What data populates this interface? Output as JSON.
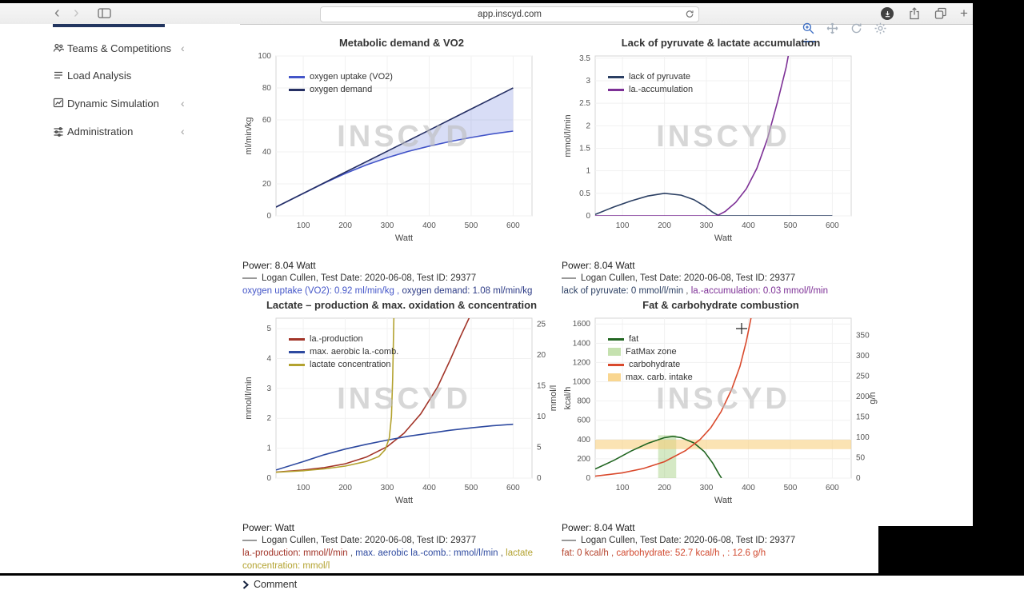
{
  "browser": {
    "url": "app.inscyd.com",
    "back": "‹",
    "forward": "›",
    "new_tab": "+",
    "icons": [
      "back-icon",
      "forward-icon",
      "sidebar-toggle-icon",
      "reload-icon",
      "downloads-icon",
      "share-icon",
      "tabs-overview-icon",
      "new-tab-icon"
    ]
  },
  "sidebar": {
    "items": [
      {
        "label": "Teams & Competitions",
        "chevron": "‹"
      },
      {
        "label": "Load Analysis",
        "chevron": ""
      },
      {
        "label": "Dynamic Simulation",
        "chevron": "‹"
      },
      {
        "label": "Administration",
        "chevron": "‹"
      }
    ]
  },
  "modebar": {
    "icons": [
      "zoom-icon",
      "pan-icon",
      "reset-axes-icon",
      "settings-icon"
    ]
  },
  "comment": {
    "label": "Comment"
  },
  "chart_data": [
    {
      "type": "line",
      "title": "Metabolic demand & VO2",
      "xlabel": "Watt",
      "ylabel": "ml/min/kg",
      "y2label": null,
      "xlim": [
        35,
        645
      ],
      "xticks": [
        100,
        200,
        300,
        400,
        500,
        600
      ],
      "ylim": [
        0,
        100
      ],
      "yticks": [
        0,
        20,
        40,
        60,
        80,
        100
      ],
      "watermark": "INSCYD",
      "legend": [
        {
          "label": "oxygen uptake (VO2)",
          "color": "#4355c8",
          "swatch": "line"
        },
        {
          "label": "oxygen demand",
          "color": "#252f63",
          "swatch": "line"
        }
      ],
      "series": [
        {
          "name": "oxygen uptake (VO2)",
          "color": "#4355c8",
          "axis": "left",
          "x": [
            35,
            100,
            150,
            200,
            250,
            300,
            350,
            400,
            450,
            500,
            550,
            600
          ],
          "y": [
            5.5,
            14,
            20.5,
            26.5,
            31.8,
            36.4,
            40.3,
            43.6,
            46.5,
            49,
            51.2,
            53
          ]
        },
        {
          "name": "oxygen demand",
          "color": "#252f63",
          "axis": "left",
          "x": [
            35,
            100,
            200,
            300,
            400,
            500,
            600
          ],
          "y": [
            5.5,
            14.1,
            27.3,
            40.4,
            53.6,
            66.8,
            80
          ]
        }
      ],
      "fill_between": {
        "series": [
          0,
          1
        ],
        "color": "rgba(100,120,220,0.25)"
      },
      "bands": [],
      "footer": {
        "power": "Power: 8.04 Watt",
        "athlete": "Logan Cullen, Test Date: 2020-06-08, Test ID: 29377",
        "values": [
          {
            "text": "oxygen uptake (VO2): 0.92 ml/min/kg",
            "color": "#4355c8"
          },
          {
            "text": " , ",
            "color": "#4355c8"
          },
          {
            "text": "oxygen demand: 1.08 ml/min/kg",
            "color": "#2c3a85"
          }
        ]
      }
    },
    {
      "type": "line",
      "title": "Lack of pyruvate & lactate accumulation",
      "xlabel": "Watt",
      "ylabel": "mmol/l/min",
      "y2label": null,
      "xlim": [
        35,
        645
      ],
      "xticks": [
        100,
        200,
        300,
        400,
        500,
        600
      ],
      "ylim": [
        0,
        3.55
      ],
      "yticks": [
        0,
        0.5,
        1,
        1.5,
        2,
        2.5,
        3,
        3.5
      ],
      "watermark": "INSCYD",
      "legend": [
        {
          "label": "lack of pyruvate",
          "color": "#2b3f63",
          "swatch": "line"
        },
        {
          "label": "la.-accumulation",
          "color": "#7d3096",
          "swatch": "line"
        }
      ],
      "series": [
        {
          "name": "lack of pyruvate",
          "color": "#2b3f63",
          "axis": "left",
          "x": [
            35,
            80,
            120,
            160,
            200,
            240,
            270,
            295,
            315,
            330,
            400,
            600
          ],
          "y": [
            0.03,
            0.2,
            0.33,
            0.44,
            0.5,
            0.46,
            0.36,
            0.22,
            0.08,
            0,
            0,
            0
          ]
        },
        {
          "name": "la.-accumulation",
          "color": "#7d3096",
          "axis": "left",
          "x": [
            35,
            325,
            345,
            370,
            395,
            420,
            445,
            470,
            490,
            502
          ],
          "y": [
            0,
            0,
            0.1,
            0.3,
            0.6,
            1.05,
            1.7,
            2.55,
            3.3,
            3.9
          ]
        }
      ],
      "bands": [],
      "footer": {
        "power": "Power: 8.04 Watt",
        "athlete": "Logan Cullen, Test Date: 2020-06-08, Test ID: 29377",
        "values": [
          {
            "text": "lack of pyruvate: 0 mmol/l/min",
            "color": "#2b3f63"
          },
          {
            "text": " , ",
            "color": "#555555"
          },
          {
            "text": "la.-accumulation: 0.03 mmol/l/min",
            "color": "#7d3096"
          }
        ]
      }
    },
    {
      "type": "line",
      "title": "Lactate – production & max. oxidation & concentration",
      "xlabel": "Watt",
      "ylabel": "mmol/l/min",
      "y2label": "mmol/l",
      "xlim": [
        35,
        645
      ],
      "xticks": [
        100,
        200,
        300,
        400,
        500,
        600
      ],
      "ylim": [
        0,
        5.35
      ],
      "yticks": [
        0,
        1,
        2,
        3,
        4,
        5
      ],
      "ylim2": [
        0,
        26
      ],
      "y2ticks": [
        0,
        5,
        10,
        15,
        20,
        25
      ],
      "watermark": "INSCYD",
      "legend": [
        {
          "label": "la.-production",
          "color": "#a23428",
          "swatch": "line"
        },
        {
          "label": "max. aerobic la.-comb.",
          "color": "#2e4aa0",
          "swatch": "line"
        },
        {
          "label": "lactate concentration",
          "color": "#b3a22f",
          "swatch": "line"
        }
      ],
      "series": [
        {
          "name": "la.-production",
          "color": "#a23428",
          "axis": "left",
          "x": [
            35,
            100,
            150,
            200,
            250,
            300,
            340,
            380,
            420,
            450,
            475,
            495,
            505
          ],
          "y": [
            0.2,
            0.27,
            0.35,
            0.48,
            0.7,
            1.05,
            1.5,
            2.15,
            3.05,
            3.95,
            4.75,
            5.35,
            5.6
          ]
        },
        {
          "name": "max. aerobic la.-comb.",
          "color": "#2e4aa0",
          "axis": "left",
          "x": [
            35,
            100,
            150,
            200,
            250,
            300,
            350,
            400,
            450,
            500,
            550,
            600
          ],
          "y": [
            0.27,
            0.55,
            0.78,
            0.97,
            1.13,
            1.27,
            1.4,
            1.5,
            1.6,
            1.68,
            1.75,
            1.8
          ]
        },
        {
          "name": "lactate concentration",
          "color": "#b3a22f",
          "axis": "right",
          "x": [
            35,
            100,
            150,
            200,
            250,
            280,
            295,
            305,
            310,
            313,
            316
          ],
          "y": [
            0.95,
            1.2,
            1.5,
            1.95,
            2.7,
            3.5,
            4.6,
            6.5,
            10,
            16,
            26.5
          ]
        }
      ],
      "bands": [],
      "footer": {
        "power": "Power: Watt",
        "athlete": "Logan Cullen, Test Date: 2020-06-08, Test ID: 29377",
        "values": [
          {
            "text": "la.-production: mmol/l/min",
            "color": "#a23428"
          },
          {
            "text": " , ",
            "color": "#555555"
          },
          {
            "text": "max. aerobic la.-comb.: mmol/l/min",
            "color": "#2e4aa0"
          },
          {
            "text": " , ",
            "color": "#555555"
          },
          {
            "text": "lactate concentration: mmol/l",
            "color": "#b3a22f"
          }
        ]
      }
    },
    {
      "type": "line",
      "title": "Fat & carbohydrate combustion",
      "xlabel": "Watt",
      "ylabel": "kcal/h",
      "y2label": "g/h",
      "xlim": [
        35,
        645
      ],
      "xticks": [
        100,
        200,
        300,
        400,
        500,
        600
      ],
      "ylim": [
        0,
        1660
      ],
      "yticks": [
        0,
        200,
        400,
        600,
        800,
        1000,
        1200,
        1400,
        1600
      ],
      "ylim2": [
        0,
        392
      ],
      "y2ticks": [
        0,
        50,
        100,
        150,
        200,
        250,
        300,
        350
      ],
      "watermark": "INSCYD",
      "legend": [
        {
          "label": "fat",
          "color": "#226622",
          "swatch": "line"
        },
        {
          "label": "FatMax zone",
          "color": "rgba(150,200,110,0.55)",
          "swatch": "box"
        },
        {
          "label": "carbohydrate",
          "color": "#d9492c",
          "swatch": "line"
        },
        {
          "label": "max. carb. intake",
          "color": "rgba(248,204,116,0.8)",
          "swatch": "box"
        }
      ],
      "series": [
        {
          "name": "fat",
          "color": "#226622",
          "axis": "left",
          "x": [
            35,
            80,
            120,
            160,
            200,
            220,
            240,
            270,
            295,
            315,
            330,
            336
          ],
          "y": [
            95,
            185,
            280,
            360,
            420,
            433,
            420,
            365,
            275,
            155,
            40,
            0
          ]
        },
        {
          "name": "carbohydrate",
          "color": "#d9492c",
          "axis": "left",
          "x": [
            35,
            100,
            150,
            200,
            250,
            285,
            310,
            335,
            360,
            380,
            395,
            408
          ],
          "y": [
            20,
            55,
            100,
            170,
            285,
            400,
            520,
            690,
            920,
            1160,
            1420,
            1700
          ]
        }
      ],
      "bands": [
        {
          "orient": "v",
          "from": 185,
          "to": 228,
          "top": 445,
          "bottom": 0,
          "color": "rgba(150,200,110,0.4)"
        },
        {
          "orient": "h",
          "top": 398,
          "bottom": 300,
          "color": "rgba(248,204,116,0.55)"
        }
      ],
      "footer": {
        "power": "Power: 8.04 Watt",
        "athlete": "Logan Cullen, Test Date: 2020-06-08, Test ID: 29377",
        "values": [
          {
            "text": "fat: 0 kcal/h",
            "color": "#b5452f"
          },
          {
            "text": " , ",
            "color": "#b5452f"
          },
          {
            "text": "carbohydrate: 52.7 kcal/h",
            "color": "#d1492f"
          },
          {
            "text": " , ",
            "color": "#d1492f"
          },
          {
            "text": ": 12.6 g/h",
            "color": "#d1492f"
          }
        ]
      }
    }
  ]
}
